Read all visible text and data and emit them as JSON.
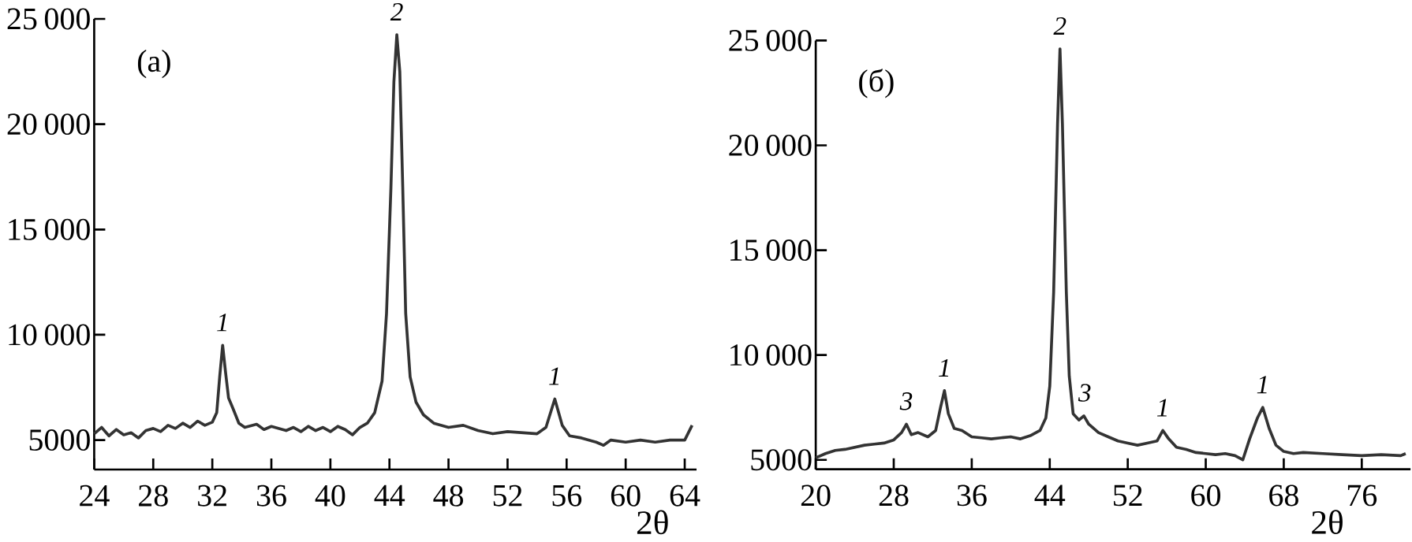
{
  "chart_data": [
    {
      "type": "line",
      "color": "#333333",
      "xlabel": "2θ",
      "x": [
        24,
        24.5,
        25,
        25.5,
        26,
        26.5,
        27,
        27.5,
        28,
        28.5,
        29,
        29.5,
        30,
        30.5,
        31,
        31.5,
        32,
        32.3,
        32.5,
        32.7,
        32.9,
        33.1,
        33.4,
        33.8,
        34.2,
        35,
        35.5,
        36,
        37,
        37.5,
        38,
        38.5,
        39,
        39.5,
        40,
        40.5,
        41,
        41.5,
        42,
        42.5,
        43,
        43.5,
        43.8,
        44.1,
        44.3,
        44.5,
        44.7,
        44.9,
        45.1,
        45.4,
        45.8,
        46.3,
        47,
        48,
        49,
        50,
        51,
        52,
        53,
        54,
        54.6,
        55.2,
        55.7,
        56.2,
        57,
        58,
        58.5,
        59,
        60,
        61,
        62,
        63,
        64,
        64.5
      ],
      "values": [
        5300,
        5600,
        5200,
        5500,
        5250,
        5350,
        5100,
        5450,
        5550,
        5400,
        5700,
        5550,
        5800,
        5600,
        5900,
        5700,
        5850,
        6300,
        8000,
        9500,
        8200,
        7000,
        6500,
        5800,
        5600,
        5750,
        5500,
        5650,
        5450,
        5600,
        5400,
        5650,
        5450,
        5600,
        5400,
        5650,
        5500,
        5250,
        5600,
        5800,
        6300,
        7800,
        11000,
        17000,
        22000,
        24250,
        22500,
        17000,
        11000,
        8000,
        6800,
        6200,
        5800,
        5600,
        5700,
        5450,
        5300,
        5400,
        5350,
        5300,
        5600,
        6950,
        5700,
        5200,
        5100,
        4900,
        4750,
        5000,
        4900,
        5000,
        4900,
        5000,
        5000,
        5700
      ],
      "xlim": [
        24,
        64.8
      ],
      "ylim": [
        3600,
        25000
      ],
      "xticks": [
        24,
        28,
        32,
        36,
        40,
        44,
        48,
        52,
        56,
        60,
        64
      ],
      "yticks": [
        {
          "value": 5000,
          "label": "5000"
        },
        {
          "value": 10000,
          "label": "10 000"
        },
        {
          "value": 15000,
          "label": "15 000"
        },
        {
          "value": 20000,
          "label": "20 000"
        },
        {
          "value": 25000,
          "label": "25 000"
        }
      ],
      "annotations": [
        "(a)",
        {
          "text": "1",
          "x": 32.7,
          "y": 9500
        },
        {
          "text": "2",
          "x": 44.5,
          "y": 24250
        },
        {
          "text": "1",
          "x": 55.2,
          "y": 6950
        }
      ]
    },
    {
      "type": "line",
      "color": "#333333",
      "xlabel": "2θ",
      "x": [
        20,
        21,
        22,
        23,
        24,
        25,
        26,
        27,
        28,
        28.8,
        29.3,
        29.8,
        30.5,
        31.5,
        32.3,
        32.8,
        33.2,
        33.6,
        34.2,
        35,
        36,
        37,
        38,
        39,
        40,
        41,
        42,
        43,
        43.6,
        44,
        44.4,
        44.8,
        45.05,
        45.3,
        45.7,
        46,
        46.4,
        47,
        47.5,
        48,
        49,
        50,
        51,
        52,
        53,
        54,
        55,
        55.6,
        56.2,
        57,
        58,
        59,
        60,
        61,
        62,
        63,
        63.8,
        64.5,
        65.3,
        65.85,
        66.5,
        67.2,
        68,
        69,
        70,
        72,
        74,
        76,
        78,
        80,
        80.5
      ],
      "values": [
        5100,
        5300,
        5450,
        5500,
        5600,
        5700,
        5750,
        5800,
        5950,
        6300,
        6700,
        6200,
        6300,
        6100,
        6400,
        7500,
        8300,
        7200,
        6500,
        6400,
        6100,
        6050,
        6000,
        6050,
        6100,
        6000,
        6150,
        6400,
        7000,
        8500,
        13000,
        21000,
        24600,
        21000,
        13000,
        9000,
        7200,
        6900,
        7100,
        6700,
        6300,
        6100,
        5900,
        5800,
        5700,
        5800,
        5900,
        6400,
        6000,
        5600,
        5500,
        5350,
        5300,
        5250,
        5300,
        5200,
        5000,
        6000,
        7000,
        7500,
        6500,
        5700,
        5400,
        5300,
        5350,
        5300,
        5250,
        5200,
        5250,
        5200,
        5300
      ],
      "xlim": [
        20,
        81
      ],
      "ylim": [
        4550,
        25000
      ],
      "xticks": [
        20,
        28,
        36,
        44,
        52,
        60,
        68,
        76
      ],
      "yticks": [
        {
          "value": 5000,
          "label": "5000"
        },
        {
          "value": 10000,
          "label": "10 000"
        },
        {
          "value": 15000,
          "label": "15 000"
        },
        {
          "value": 20000,
          "label": "20 000"
        },
        {
          "value": 25000,
          "label": "25 000"
        }
      ],
      "annotations": [
        "(б)",
        {
          "text": "3",
          "x": 29.3,
          "y": 6700
        },
        {
          "text": "1",
          "x": 33.2,
          "y": 8300
        },
        {
          "text": "2",
          "x": 45.05,
          "y": 24600
        },
        {
          "text": "3",
          "x": 47.6,
          "y": 7100
        },
        {
          "text": "1",
          "x": 55.6,
          "y": 6400
        },
        {
          "text": "1",
          "x": 65.85,
          "y": 7500
        }
      ]
    }
  ]
}
